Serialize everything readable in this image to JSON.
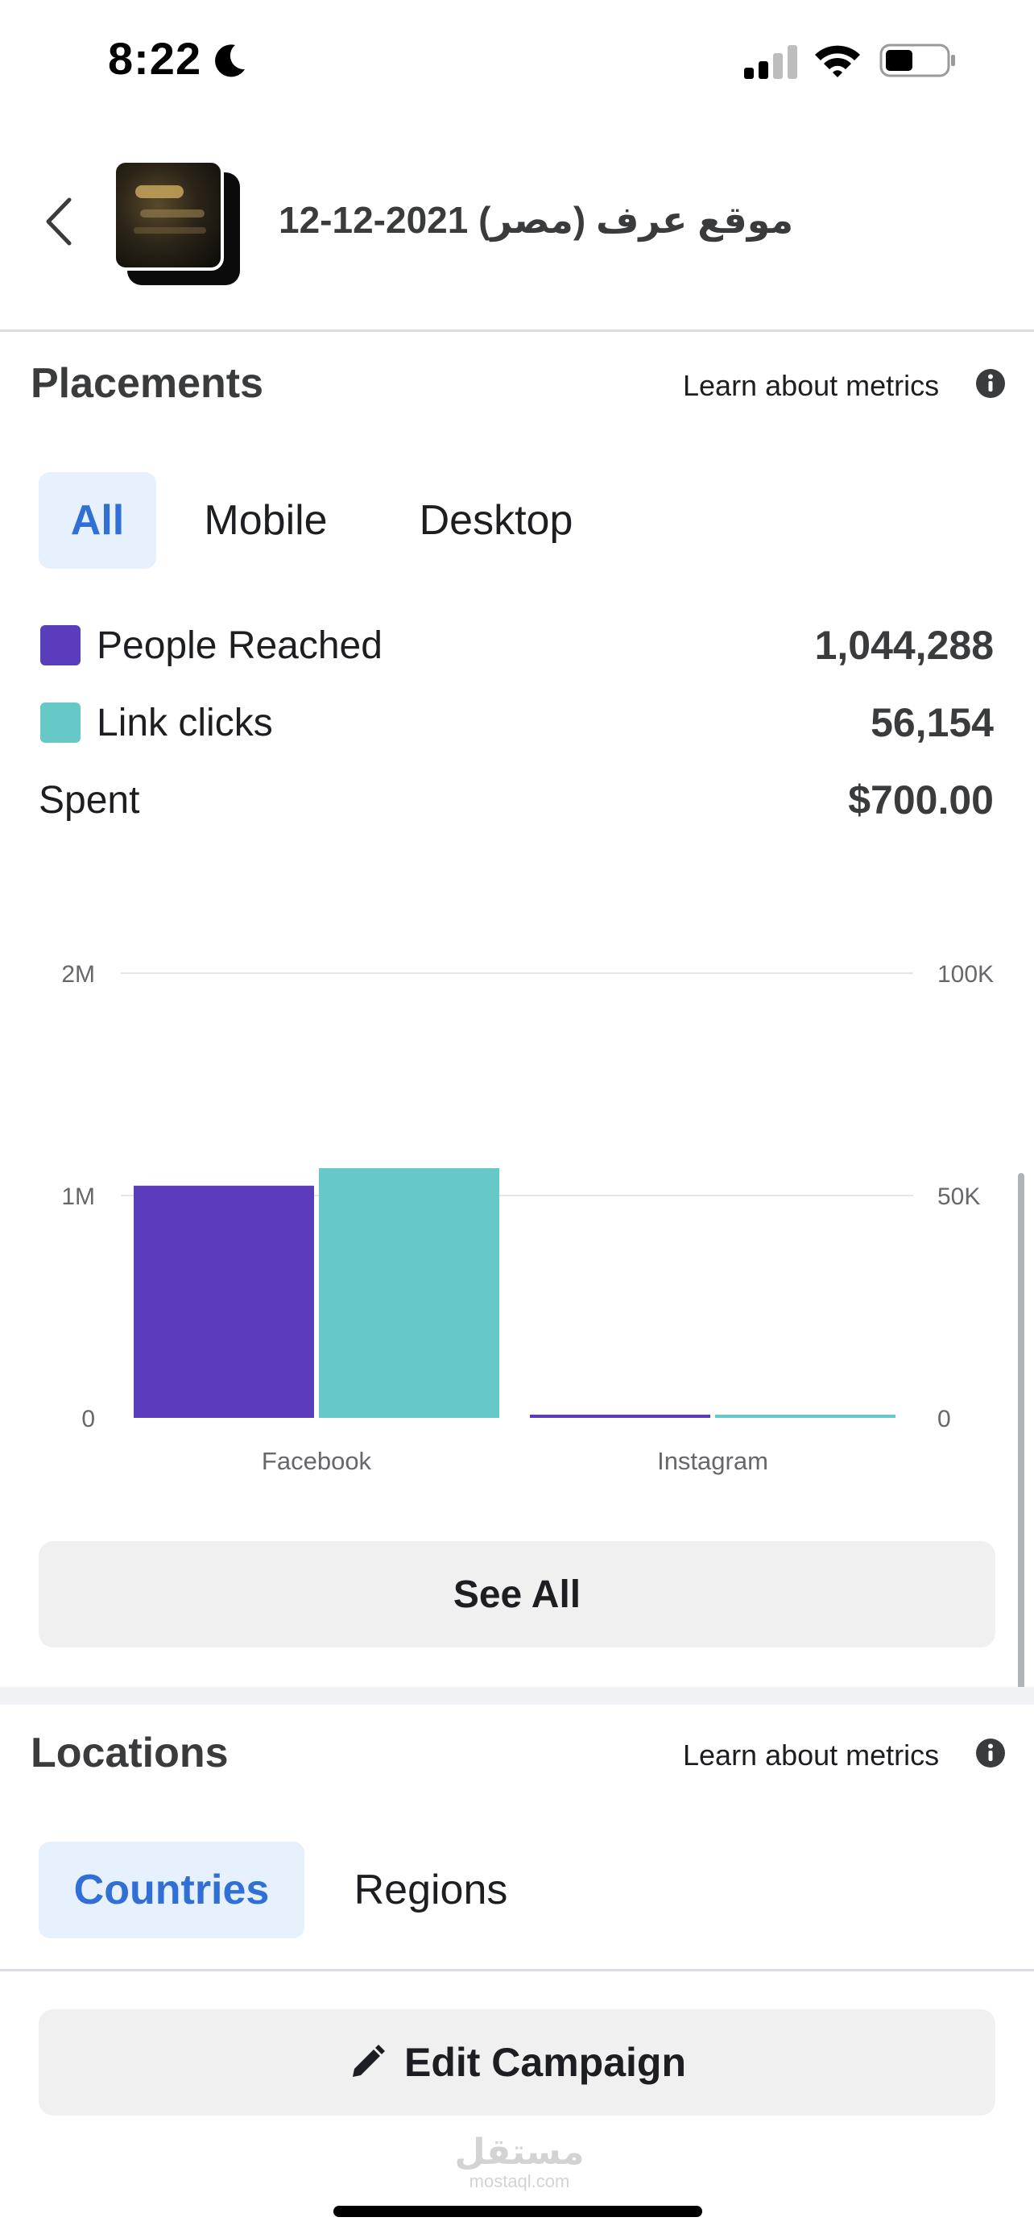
{
  "status_bar": {
    "time": "8:22",
    "moon_icon": "moon-icon",
    "signal_icon": "cellular-signal-icon",
    "wifi_icon": "wifi-icon",
    "battery_icon": "battery-icon",
    "battery_level": 0.45
  },
  "header": {
    "back_icon": "chevron-left-icon",
    "title": "موقع عرف (مصر) 2021-12-12"
  },
  "placements": {
    "title": "Placements",
    "learn_link": "Learn about metrics",
    "info_icon": "info-icon",
    "tabs": [
      {
        "label": "All",
        "active": true
      },
      {
        "label": "Mobile",
        "active": false
      },
      {
        "label": "Desktop",
        "active": false
      }
    ],
    "metrics": [
      {
        "label": "People Reached",
        "value": "1,044,288",
        "color": "#5a3dbb"
      },
      {
        "label": "Link clicks",
        "value": "56,154",
        "color": "#66c9c8"
      },
      {
        "label": "Spent",
        "value": "$700.00"
      }
    ],
    "see_all_label": "See All"
  },
  "chart_data": {
    "type": "bar",
    "categories": [
      "Facebook",
      "Instagram"
    ],
    "series": [
      {
        "name": "People Reached",
        "axis": "left",
        "color": "#5a3dbb",
        "values": [
          1044288,
          8000
        ]
      },
      {
        "name": "Link clicks",
        "axis": "right",
        "color": "#66c9c8",
        "values": [
          56154,
          400
        ]
      }
    ],
    "left_axis": {
      "ticks": [
        "0",
        "1M",
        "2M"
      ],
      "range": [
        0,
        2000000
      ]
    },
    "right_axis": {
      "ticks": [
        "0",
        "50K",
        "100K"
      ],
      "range": [
        0,
        100000
      ]
    },
    "grid": true,
    "title": "",
    "xlabel": "",
    "ylabel": ""
  },
  "locations": {
    "title": "Locations",
    "learn_link": "Learn about metrics",
    "info_icon": "info-icon",
    "tabs": [
      {
        "label": "Countries",
        "active": true
      },
      {
        "label": "Regions",
        "active": false
      }
    ]
  },
  "edit_campaign": {
    "label": "Edit Campaign",
    "icon": "pencil-icon"
  },
  "watermark": {
    "arabic": "مستقل",
    "latin": "mostaql.com"
  }
}
